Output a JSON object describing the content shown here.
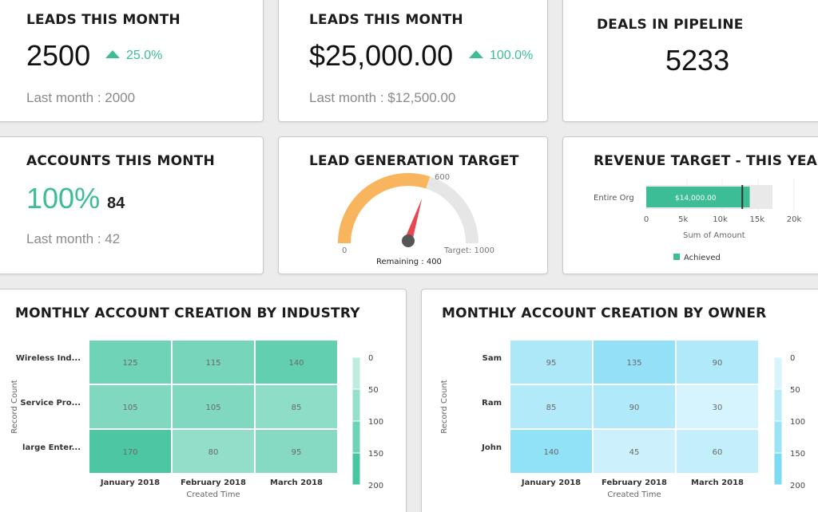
{
  "cards": {
    "leads_count": {
      "title": "LEADS THIS MONTH",
      "value": "2500",
      "delta": "25.0%",
      "last_month": "Last month : 2000"
    },
    "leads_amount": {
      "title": "LEADS THIS MONTH",
      "value": "$25,000.00",
      "delta": "100.0%",
      "last_month": "Last month : $12,500.00"
    },
    "deals": {
      "title": "DEALS IN PIPELINE",
      "value": "5233"
    },
    "accounts": {
      "title": "ACCOUNTS THIS MONTH",
      "percent": "100%",
      "count": "84",
      "last_month": "Last month : 42"
    },
    "lead_target": {
      "title": "LEAD GENERATION TARGET",
      "max_label": "600",
      "min_label": "0",
      "target_label": "Target: 1000",
      "remaining_label": "Remaining : 400",
      "gauge_value": 600,
      "gauge_max": 1000
    },
    "revenue_target": {
      "title": "REVENUE TARGET - THIS YEAR",
      "category": "Entire Org",
      "bar_value_label": "$14,000.00",
      "achieved": 14000,
      "target": 13000,
      "xmax": 20000,
      "ticks": [
        "0",
        "5k",
        "10k",
        "15k",
        "20k"
      ],
      "xlabel": "Sum of Amount",
      "legend": "Achieved"
    }
  },
  "colors": {
    "accent": "#3dbd95",
    "gauge_fill": "#f9b55d",
    "gauge_track": "#e6e6e6",
    "needle": "#e8474e",
    "heat_green_low": "#d2f3ea",
    "heat_green_high": "#33bf98",
    "heat_blue_low": "#e8f9fe",
    "heat_blue_high": "#6bd6f4"
  },
  "chart_data": [
    {
      "type": "heatmap",
      "title": "MONTHLY ACCOUNT CREATION BY INDUSTRY",
      "xlabel": "Created Time",
      "ylabel": "Record Count",
      "x": [
        "January 2018",
        "February 2018",
        "March 2018"
      ],
      "y": [
        "Wireless Ind...",
        "Service Pro...",
        "large Enter..."
      ],
      "values": [
        [
          125,
          115,
          140
        ],
        [
          105,
          105,
          85
        ],
        [
          170,
          80,
          95
        ]
      ],
      "legend_ticks": [
        "0",
        "50",
        "100",
        "150",
        "200"
      ],
      "range": [
        0,
        200
      ]
    },
    {
      "type": "heatmap",
      "title": "MONTHLY ACCOUNT CREATION BY OWNER",
      "xlabel": "Created Time",
      "ylabel": "Record Count",
      "x": [
        "January 2018",
        "February 2018",
        "March 2018"
      ],
      "y": [
        "Sam",
        "Ram",
        "John"
      ],
      "values": [
        [
          95,
          135,
          90
        ],
        [
          85,
          90,
          30
        ],
        [
          140,
          45,
          60
        ]
      ],
      "legend_ticks": [
        "0",
        "50",
        "100",
        "150",
        "200"
      ],
      "range": [
        0,
        200
      ]
    }
  ]
}
